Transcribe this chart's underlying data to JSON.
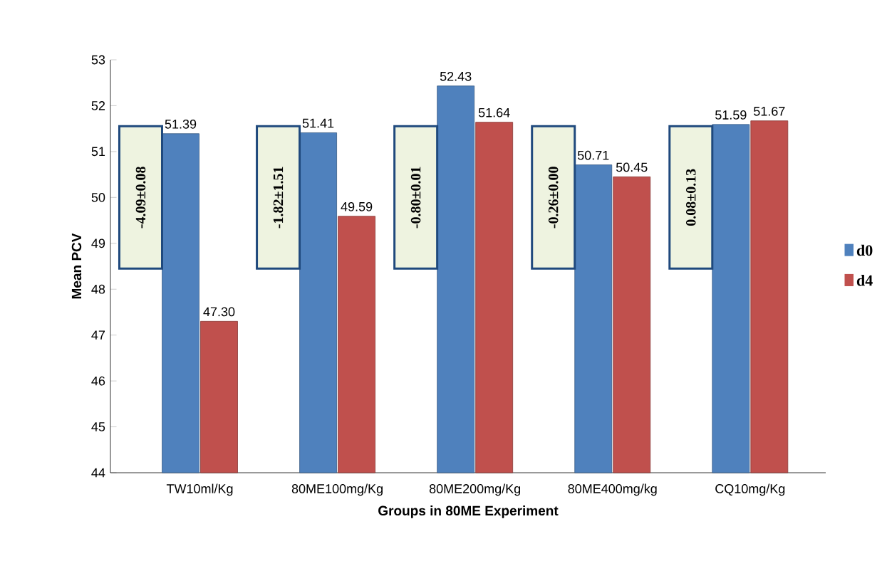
{
  "chart_data": {
    "type": "bar",
    "xlabel": "Groups in 80ME Experiment",
    "ylabel": "Mean PCV",
    "categories": [
      "TW10ml/Kg",
      "80ME100mg/Kg",
      "80ME200mg/Kg",
      "80ME400mg/kg",
      "CQ10mg/Kg"
    ],
    "series": [
      {
        "name": "d0",
        "color": "#4f81bd",
        "values": [
          51.39,
          51.41,
          52.43,
          50.71,
          51.59
        ],
        "value_labels": [
          "51.39",
          "51.41",
          "52.43",
          "50.71",
          "51.59"
        ]
      },
      {
        "name": "d4",
        "color": "#c0504d",
        "values": [
          47.3,
          49.59,
          51.64,
          50.45,
          51.67
        ],
        "value_labels": [
          "47.30",
          "49.59",
          "51.64",
          "50.45",
          "51.67"
        ]
      }
    ],
    "ylim": [
      44,
      53
    ],
    "yticks": [
      44,
      45,
      46,
      47,
      48,
      49,
      50,
      51,
      52,
      53
    ],
    "annotations": [
      "-4.09±0.08",
      "-1.82±1.51",
      "-0.80±0.01",
      "-0.26±0.00",
      "0.08±0.13"
    ],
    "legend": "right",
    "grid": false
  }
}
